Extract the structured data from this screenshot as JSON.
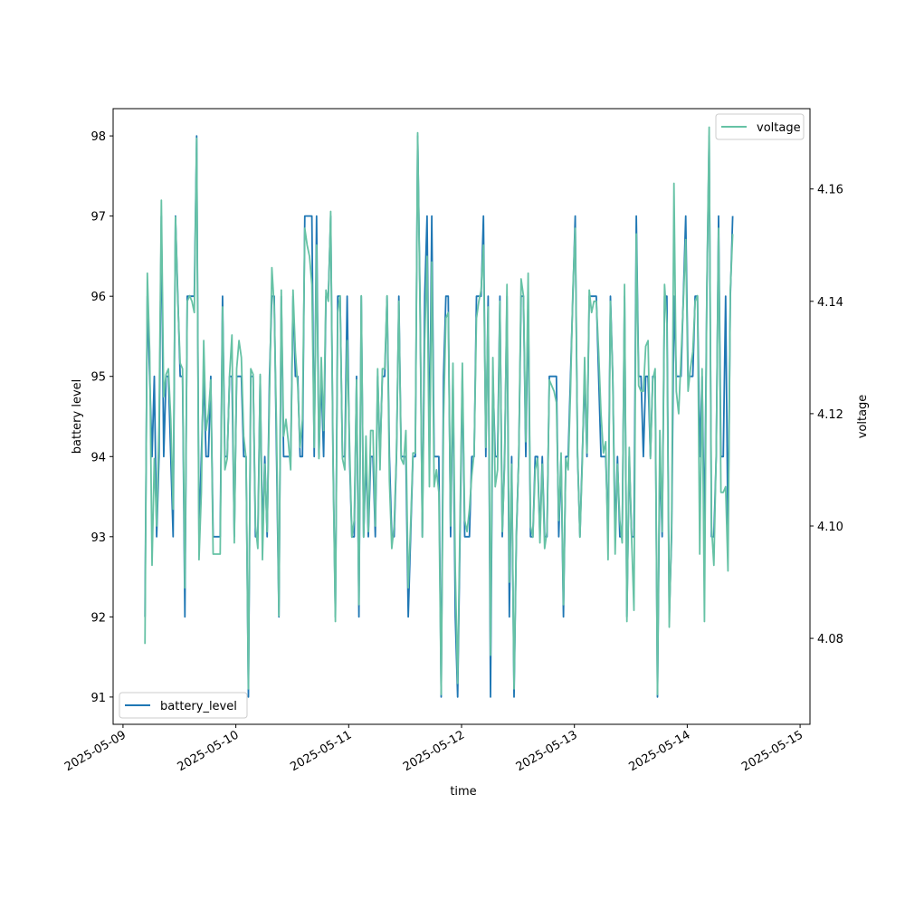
{
  "chart_data": {
    "type": "line",
    "x_type": "datetime",
    "xlabel": "time",
    "ylabel_left": "battery level",
    "ylabel_right": "voltage",
    "xlim": [
      "2025-05-08T21:54",
      "2025-05-15T02:06"
    ],
    "ylim_left": [
      90.66,
      98.34
    ],
    "ylim_right": [
      4.0647,
      4.1743
    ],
    "x_ticks": [
      "2025-05-09",
      "2025-05-10",
      "2025-05-11",
      "2025-05-12",
      "2025-05-13",
      "2025-05-14",
      "2025-05-15"
    ],
    "y_left_ticks": [
      91,
      92,
      93,
      94,
      95,
      96,
      97,
      98
    ],
    "y_right_ticks": [
      4.08,
      4.1,
      4.12,
      4.14,
      4.16
    ],
    "grid": false,
    "legends": [
      {
        "axis": "left",
        "placement": "lower-left",
        "entries": [
          "battery_level"
        ]
      },
      {
        "axis": "right",
        "placement": "upper-right",
        "entries": [
          "voltage"
        ]
      }
    ],
    "colors": {
      "battery_level": "#1f77b4",
      "voltage": "#66c2a5"
    },
    "series": [
      {
        "name": "battery_level",
        "axis": "left",
        "start": "2025-05-09T04:40",
        "interval_minutes": 30,
        "values": [
          92,
          96,
          95,
          94,
          95,
          93,
          94,
          97,
          94,
          95,
          95,
          94,
          93,
          97,
          96,
          95,
          95,
          92,
          96,
          96,
          96,
          96,
          98,
          93,
          94,
          95,
          94,
          94,
          95,
          93,
          93,
          93,
          93,
          96,
          94,
          94,
          95,
          95,
          93,
          95,
          95,
          95,
          94,
          94,
          91,
          95,
          95,
          93,
          93,
          95,
          93,
          94,
          93,
          95,
          96,
          96,
          94,
          92,
          96,
          94,
          94,
          94,
          94,
          96,
          95,
          95,
          94,
          94,
          97,
          97,
          97,
          97,
          94,
          97,
          94,
          95,
          94,
          96,
          96,
          97,
          94,
          92,
          96,
          96,
          94,
          94,
          96,
          94,
          93,
          93,
          95,
          92,
          96,
          93,
          94,
          93,
          94,
          94,
          93,
          95,
          94,
          95,
          95,
          96,
          94,
          93,
          93,
          94,
          96,
          94,
          94,
          94,
          92,
          93,
          94,
          94,
          98,
          96,
          93,
          96,
          97,
          94,
          97,
          94,
          94,
          94,
          91,
          95,
          96,
          96,
          93,
          95,
          92,
          91,
          93,
          95,
          93,
          93,
          93,
          94,
          94,
          96,
          96,
          96,
          97,
          94,
          96,
          91,
          95,
          94,
          94,
          96,
          93,
          94,
          96,
          92,
          94,
          91,
          93,
          94,
          96,
          96,
          94,
          96,
          93,
          93,
          94,
          94,
          93,
          94,
          93,
          93,
          95,
          95,
          95,
          95,
          93,
          94,
          92,
          94,
          94,
          95,
          96,
          97,
          94,
          93,
          94,
          95,
          94,
          96,
          96,
          96,
          96,
          95,
          94,
          94,
          94,
          93,
          96,
          95,
          93,
          94,
          93,
          93,
          96,
          92,
          94,
          93,
          93,
          97,
          95,
          95,
          94,
          95,
          95,
          94,
          95,
          95,
          91,
          94,
          93,
          96,
          96,
          92,
          93,
          96,
          95,
          95,
          95,
          96,
          97,
          95,
          95,
          95,
          96,
          96,
          94,
          95,
          93,
          96,
          98,
          93,
          93,
          94,
          97,
          94,
          94,
          96,
          93,
          96,
          97
        ]
      },
      {
        "name": "voltage",
        "axis": "right",
        "start": "2025-05-09T04:40",
        "interval_minutes": 30,
        "values": [
          4.079,
          4.145,
          4.131,
          4.093,
          4.112,
          4.1,
          4.118,
          4.158,
          4.123,
          4.127,
          4.128,
          4.119,
          4.103,
          4.155,
          4.14,
          4.129,
          4.128,
          4.089,
          4.14,
          4.141,
          4.14,
          4.138,
          4.169,
          4.094,
          4.106,
          4.133,
          4.117,
          4.12,
          4.126,
          4.095,
          4.095,
          4.095,
          4.095,
          4.139,
          4.11,
          4.112,
          4.127,
          4.134,
          4.097,
          4.128,
          4.133,
          4.13,
          4.116,
          4.112,
          4.071,
          4.128,
          4.127,
          4.1,
          4.096,
          4.127,
          4.094,
          4.111,
          4.099,
          4.123,
          4.146,
          4.139,
          4.117,
          4.084,
          4.142,
          4.116,
          4.119,
          4.115,
          4.11,
          4.142,
          4.131,
          4.125,
          4.114,
          4.119,
          4.153,
          4.15,
          4.148,
          4.143,
          4.114,
          4.15,
          4.112,
          4.13,
          4.117,
          4.142,
          4.14,
          4.156,
          4.111,
          4.083,
          4.138,
          4.141,
          4.112,
          4.11,
          4.133,
          4.115,
          4.098,
          4.101,
          4.126,
          4.086,
          4.141,
          4.098,
          4.116,
          4.099,
          4.117,
          4.117,
          4.1,
          4.128,
          4.11,
          4.128,
          4.128,
          4.141,
          4.108,
          4.096,
          4.1,
          4.113,
          4.14,
          4.112,
          4.111,
          4.117,
          4.089,
          4.1,
          4.113,
          4.113,
          4.17,
          4.139,
          4.098,
          4.133,
          4.148,
          4.107,
          4.147,
          4.107,
          4.11,
          4.106,
          4.07,
          4.119,
          4.137,
          4.138,
          4.1,
          4.129,
          4.092,
          4.072,
          4.101,
          4.129,
          4.101,
          4.099,
          4.103,
          4.109,
          4.113,
          4.137,
          4.14,
          4.142,
          4.15,
          4.114,
          4.139,
          4.077,
          4.13,
          4.107,
          4.11,
          4.14,
          4.099,
          4.111,
          4.143,
          4.09,
          4.111,
          4.071,
          4.099,
          4.112,
          4.144,
          4.141,
          4.115,
          4.145,
          4.1,
          4.098,
          4.11,
          4.112,
          4.097,
          4.111,
          4.096,
          4.099,
          4.126,
          4.125,
          4.124,
          4.122,
          4.101,
          4.113,
          4.086,
          4.112,
          4.11,
          4.124,
          4.142,
          4.153,
          4.113,
          4.098,
          4.111,
          4.13,
          4.113,
          4.142,
          4.138,
          4.14,
          4.14,
          4.131,
          4.12,
          4.113,
          4.115,
          4.094,
          4.14,
          4.126,
          4.095,
          4.111,
          4.101,
          4.097,
          4.143,
          4.083,
          4.114,
          4.098,
          4.085,
          4.152,
          4.125,
          4.124,
          4.124,
          4.132,
          4.133,
          4.112,
          4.126,
          4.128,
          4.07,
          4.117,
          4.099,
          4.143,
          4.136,
          4.082,
          4.1,
          4.161,
          4.124,
          4.12,
          4.13,
          4.14,
          4.151,
          4.124,
          4.128,
          4.131,
          4.14,
          4.141,
          4.095,
          4.128,
          4.083,
          4.142,
          4.171,
          4.1,
          4.093,
          4.113,
          4.153,
          4.106,
          4.106,
          4.107,
          4.092,
          4.142,
          4.152
        ]
      }
    ]
  }
}
